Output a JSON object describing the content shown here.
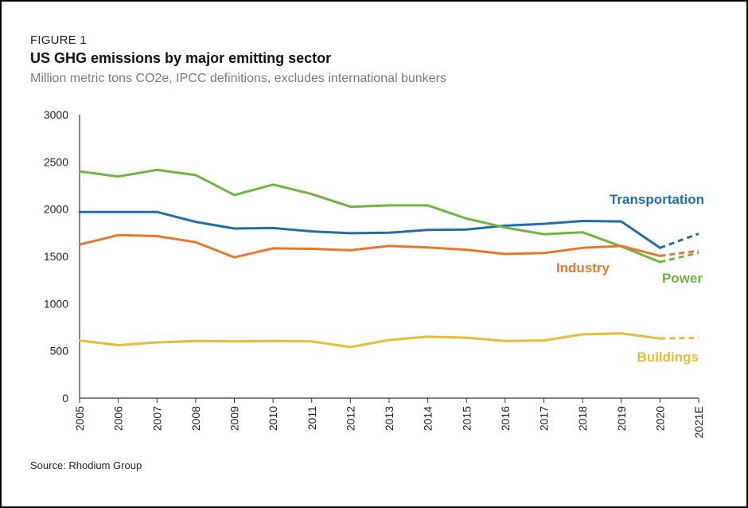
{
  "figure": {
    "label": "FIGURE 1",
    "title": "US GHG emissions by major emitting sector",
    "subtitle": "Million metric tons CO2e, IPCC definitions, excludes international bunkers",
    "source": "Source: Rhodium Group"
  },
  "chart_data": {
    "type": "line",
    "title": "US GHG emissions by major emitting sector",
    "subtitle": "Million metric tons CO2e, IPCC definitions, excludes international bunkers",
    "xlabel": "",
    "ylabel": "",
    "categories": [
      "2005",
      "2006",
      "2007",
      "2008",
      "2009",
      "2010",
      "2011",
      "2012",
      "2013",
      "2014",
      "2015",
      "2016",
      "2017",
      "2018",
      "2019",
      "2020",
      "2021E"
    ],
    "ylim": [
      0,
      3000
    ],
    "yticks": [
      0,
      500,
      1000,
      1500,
      2000,
      2500,
      3000
    ],
    "grid": false,
    "estimate_from_index": 15,
    "series": [
      {
        "name": "Transportation",
        "color": "#1f6fa8",
        "values": [
          1970,
          1970,
          1970,
          1865,
          1795,
          1800,
          1765,
          1745,
          1750,
          1780,
          1785,
          1825,
          1845,
          1875,
          1870,
          1590,
          1740
        ]
      },
      {
        "name": "Power",
        "color": "#6fb43f",
        "values": [
          2400,
          2345,
          2415,
          2360,
          2150,
          2260,
          2160,
          2025,
          2040,
          2040,
          1900,
          1805,
          1735,
          1755,
          1605,
          1440,
          1540
        ]
      },
      {
        "name": "Industry",
        "color": "#e8772e",
        "values": [
          1625,
          1725,
          1715,
          1650,
          1490,
          1585,
          1580,
          1565,
          1610,
          1595,
          1570,
          1525,
          1535,
          1590,
          1610,
          1505,
          1560
        ]
      },
      {
        "name": "Buildings",
        "color": "#e8bb3a",
        "values": [
          610,
          560,
          590,
          605,
          600,
          605,
          600,
          540,
          615,
          650,
          640,
          605,
          610,
          675,
          685,
          630,
          640
        ]
      }
    ]
  }
}
